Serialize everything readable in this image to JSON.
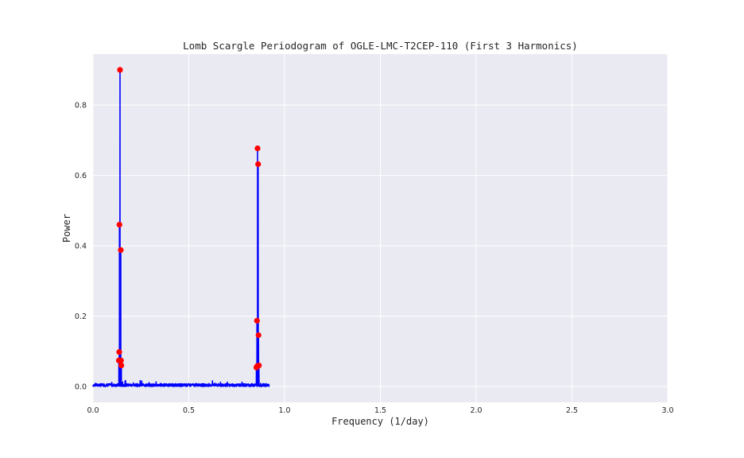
{
  "chart_data": {
    "type": "line",
    "title": "Lomb Scargle Periodogram of OGLE-LMC-T2CEP-110 (First 3 Harmonics)",
    "xlabel": "Frequency (1/day)",
    "ylabel": "Power",
    "xlim": [
      0,
      3.0
    ],
    "ylim": [
      -0.045,
      0.945
    ],
    "xticks": [
      0.0,
      0.5,
      1.0,
      1.5,
      2.0,
      2.5,
      3.0
    ],
    "xtick_labels": [
      "0.0",
      "0.5",
      "1.0",
      "1.5",
      "2.0",
      "2.5",
      "3.0"
    ],
    "yticks": [
      0.0,
      0.2,
      0.4,
      0.6,
      0.8
    ],
    "ytick_labels": [
      "0.0",
      "0.2",
      "0.4",
      "0.6",
      "0.8"
    ],
    "grid": true,
    "colors": {
      "line": "#0000ff",
      "markers": "#ff0000",
      "background": "#eaeaf2",
      "grid": "#ffffff"
    },
    "series": [
      {
        "kind": "line",
        "x_range": [
          0.0,
          0.92
        ],
        "noise_level": 0.008,
        "peaks": [
          {
            "x": 0.141,
            "y": 0.9
          },
          {
            "x": 0.859,
            "y": 0.677
          },
          {
            "x": 0.862,
            "y": 0.632
          }
        ]
      },
      {
        "kind": "scatter",
        "points": [
          {
            "x": 0.141,
            "y": 0.9
          },
          {
            "x": 0.138,
            "y": 0.46
          },
          {
            "x": 0.145,
            "y": 0.388
          },
          {
            "x": 0.137,
            "y": 0.098
          },
          {
            "x": 0.135,
            "y": 0.074
          },
          {
            "x": 0.146,
            "y": 0.074
          },
          {
            "x": 0.148,
            "y": 0.06
          },
          {
            "x": 0.859,
            "y": 0.677
          },
          {
            "x": 0.862,
            "y": 0.632
          },
          {
            "x": 0.856,
            "y": 0.187
          },
          {
            "x": 0.864,
            "y": 0.146
          },
          {
            "x": 0.853,
            "y": 0.054
          },
          {
            "x": 0.857,
            "y": 0.058
          },
          {
            "x": 0.866,
            "y": 0.06
          }
        ]
      }
    ]
  }
}
